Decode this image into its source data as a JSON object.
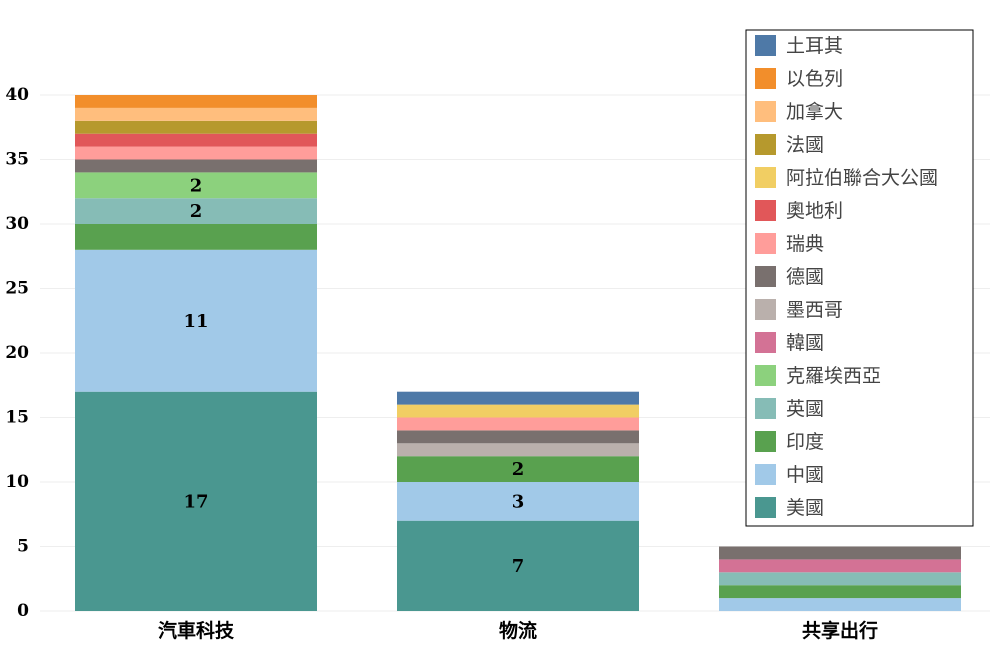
{
  "chart_data": {
    "type": "bar",
    "stacked": true,
    "categories": [
      "汽車科技",
      "物流",
      "共享出行"
    ],
    "ylim": [
      0,
      40
    ],
    "yticks": [
      0,
      5,
      10,
      15,
      20,
      25,
      30,
      35,
      40
    ],
    "grid": true,
    "legend_position": "top-right",
    "series": [
      {
        "name": "美國",
        "color": "#4a9790",
        "values": [
          17,
          7,
          0
        ],
        "labels": [
          "17",
          "7",
          ""
        ]
      },
      {
        "name": "中國",
        "color": "#a1c9e8",
        "values": [
          11,
          3,
          1
        ],
        "labels": [
          "11",
          "3",
          ""
        ]
      },
      {
        "name": "印度",
        "color": "#59a14f",
        "values": [
          2,
          2,
          1
        ],
        "labels": [
          "",
          "2",
          ""
        ]
      },
      {
        "name": "英國",
        "color": "#86bcb6",
        "values": [
          2,
          0,
          1
        ],
        "labels": [
          "2",
          "",
          ""
        ]
      },
      {
        "name": "克羅埃西亞",
        "color": "#8cd17d",
        "values": [
          2,
          0,
          0
        ],
        "labels": [
          "2",
          "",
          ""
        ]
      },
      {
        "name": "韓國",
        "color": "#d37295",
        "values": [
          0,
          0,
          1
        ],
        "labels": [
          "",
          "",
          ""
        ]
      },
      {
        "name": "墨西哥",
        "color": "#bab0ac",
        "values": [
          0,
          1,
          0
        ],
        "labels": [
          "",
          "",
          ""
        ]
      },
      {
        "name": "德國",
        "color": "#79706e",
        "values": [
          1,
          1,
          1
        ],
        "labels": [
          "",
          "",
          ""
        ]
      },
      {
        "name": "瑞典",
        "color": "#ff9d9a",
        "values": [
          1,
          1,
          0
        ],
        "labels": [
          "",
          "",
          ""
        ]
      },
      {
        "name": "奧地利",
        "color": "#e15759",
        "values": [
          1,
          0,
          0
        ],
        "labels": [
          "",
          "",
          ""
        ]
      },
      {
        "name": "阿拉伯聯合大公國",
        "color": "#f1ce63",
        "values": [
          0,
          1,
          0
        ],
        "labels": [
          "",
          "",
          ""
        ]
      },
      {
        "name": "法國",
        "color": "#b6992d",
        "values": [
          1,
          0,
          0
        ],
        "labels": [
          "",
          "",
          ""
        ]
      },
      {
        "name": "加拿大",
        "color": "#ffbe7d",
        "values": [
          1,
          0,
          0
        ],
        "labels": [
          "",
          "",
          ""
        ]
      },
      {
        "name": "以色列",
        "color": "#f28e2b",
        "values": [
          1,
          0,
          0
        ],
        "labels": [
          "",
          "",
          ""
        ]
      },
      {
        "name": "土耳其",
        "color": "#4e79a7",
        "values": [
          0,
          1,
          0
        ],
        "labels": [
          "",
          "",
          ""
        ]
      }
    ],
    "legend_order": [
      "土耳其",
      "以色列",
      "加拿大",
      "法國",
      "阿拉伯聯合大公國",
      "奧地利",
      "瑞典",
      "德國",
      "墨西哥",
      "韓國",
      "克羅埃西亞",
      "英國",
      "印度",
      "中國",
      "美國"
    ]
  }
}
